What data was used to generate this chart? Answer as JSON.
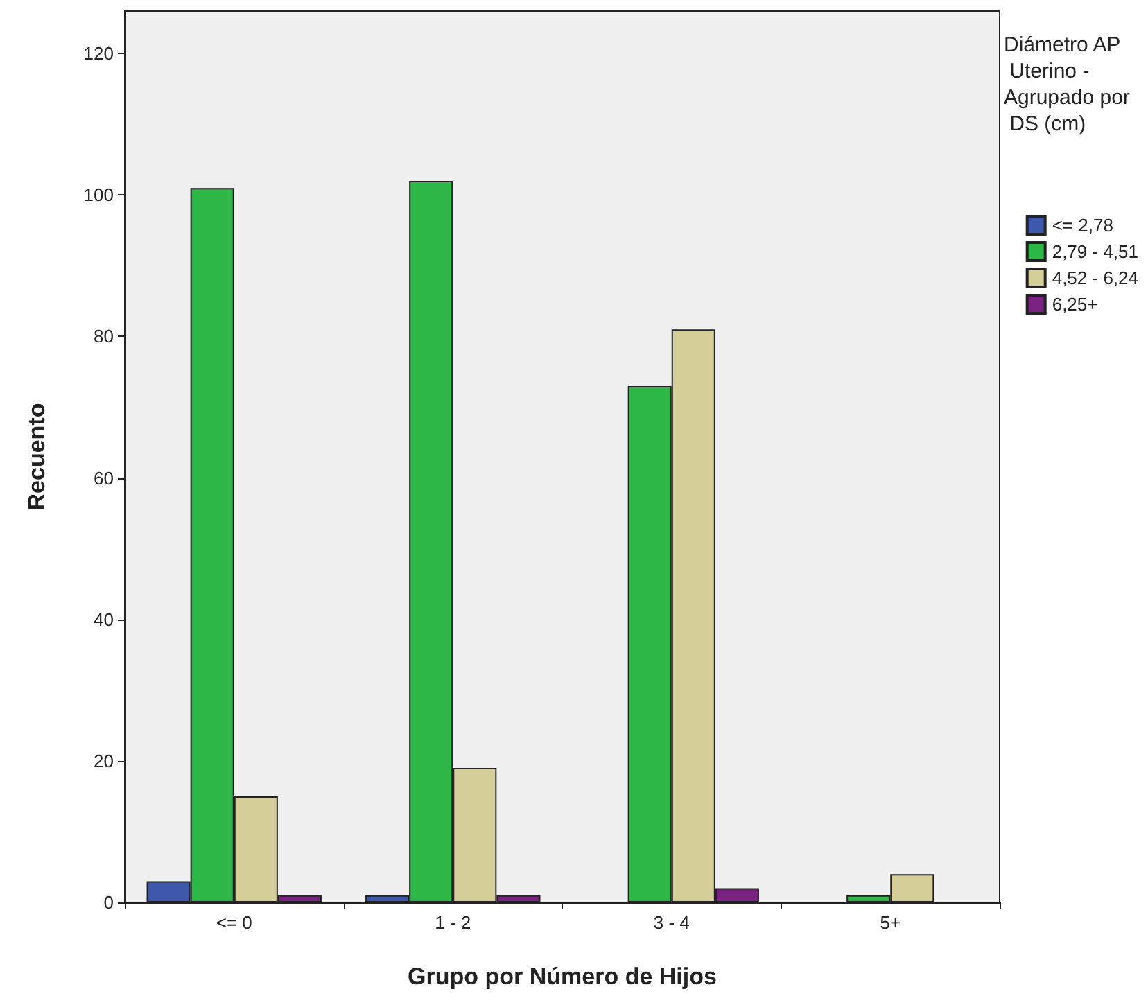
{
  "chart_data": {
    "type": "bar",
    "xlabel": "Grupo por Número de Hijos",
    "ylabel": "Recuento",
    "legend_title": "Diámetro AP Uterino - Agrupado por DS (cm)",
    "legend": "right",
    "grid": false,
    "categories": [
      "<= 0",
      "1 - 2",
      "3 - 4",
      "5+"
    ],
    "series": [
      {
        "name": "<= 2,78",
        "color": "#3e58ac",
        "values": [
          3,
          1,
          null,
          null
        ]
      },
      {
        "name": "2,79 - 4,51",
        "color": "#2eb848",
        "values": [
          101,
          102,
          73,
          1
        ]
      },
      {
        "name": "4,52 - 6,24",
        "color": "#d4ce98",
        "values": [
          15,
          19,
          81,
          4
        ]
      },
      {
        "name": "6,25+",
        "color": "#7a2281",
        "values": [
          1,
          1,
          2,
          null
        ]
      }
    ],
    "ylim": [
      0,
      126
    ],
    "yticks": [
      0,
      20,
      40,
      60,
      80,
      100,
      120
    ]
  }
}
